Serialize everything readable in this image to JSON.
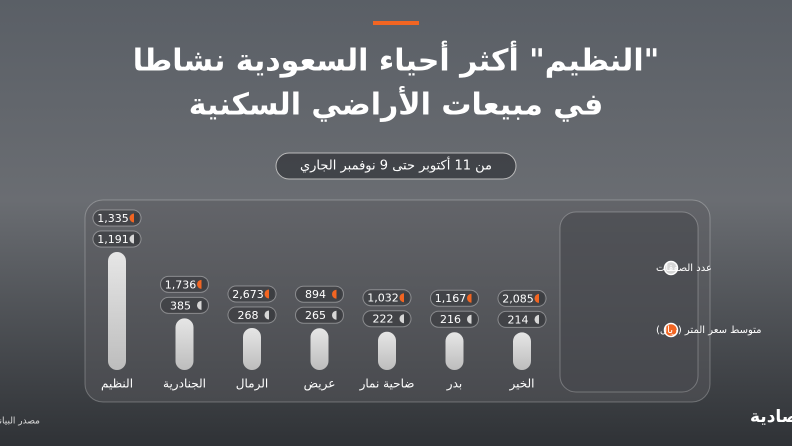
{
  "header": {
    "title_lines": [
      "\"النظيم\" أكثر أحياء السعودية نشاطا",
      "في مبيعات الأراضي السكنية"
    ],
    "subtitle": "من 11 أكتوبر حتى 9 نوفمبر الجاري"
  },
  "chart_data": {
    "type": "bar",
    "categories": [
      "النظيم",
      "الجنادرية",
      "الرمال",
      "عريض",
      "ضاحية نمار",
      "بدر",
      "الخير"
    ],
    "series": [
      {
        "name": "عدد الصفقات",
        "color": "#d6d6d6",
        "values": [
          1191,
          385,
          268,
          265,
          222,
          216,
          214
        ],
        "value_labels": [
          "1,191",
          "385",
          "268",
          "265",
          "222",
          "216",
          "214"
        ]
      },
      {
        "name": "متوسط سعر المتر (ريال)",
        "color": "#f26522",
        "values": [
          1335,
          1736,
          2673,
          894,
          1032,
          1167,
          2085
        ],
        "value_labels": [
          "1,335",
          "1,736",
          "2,673",
          "894",
          "1,032",
          "1,167",
          "2,085"
        ]
      }
    ]
  },
  "footer": {
    "source": "مصدر البيانات: الهيئة العامة للعقار",
    "logo": "الاقتصادية"
  }
}
